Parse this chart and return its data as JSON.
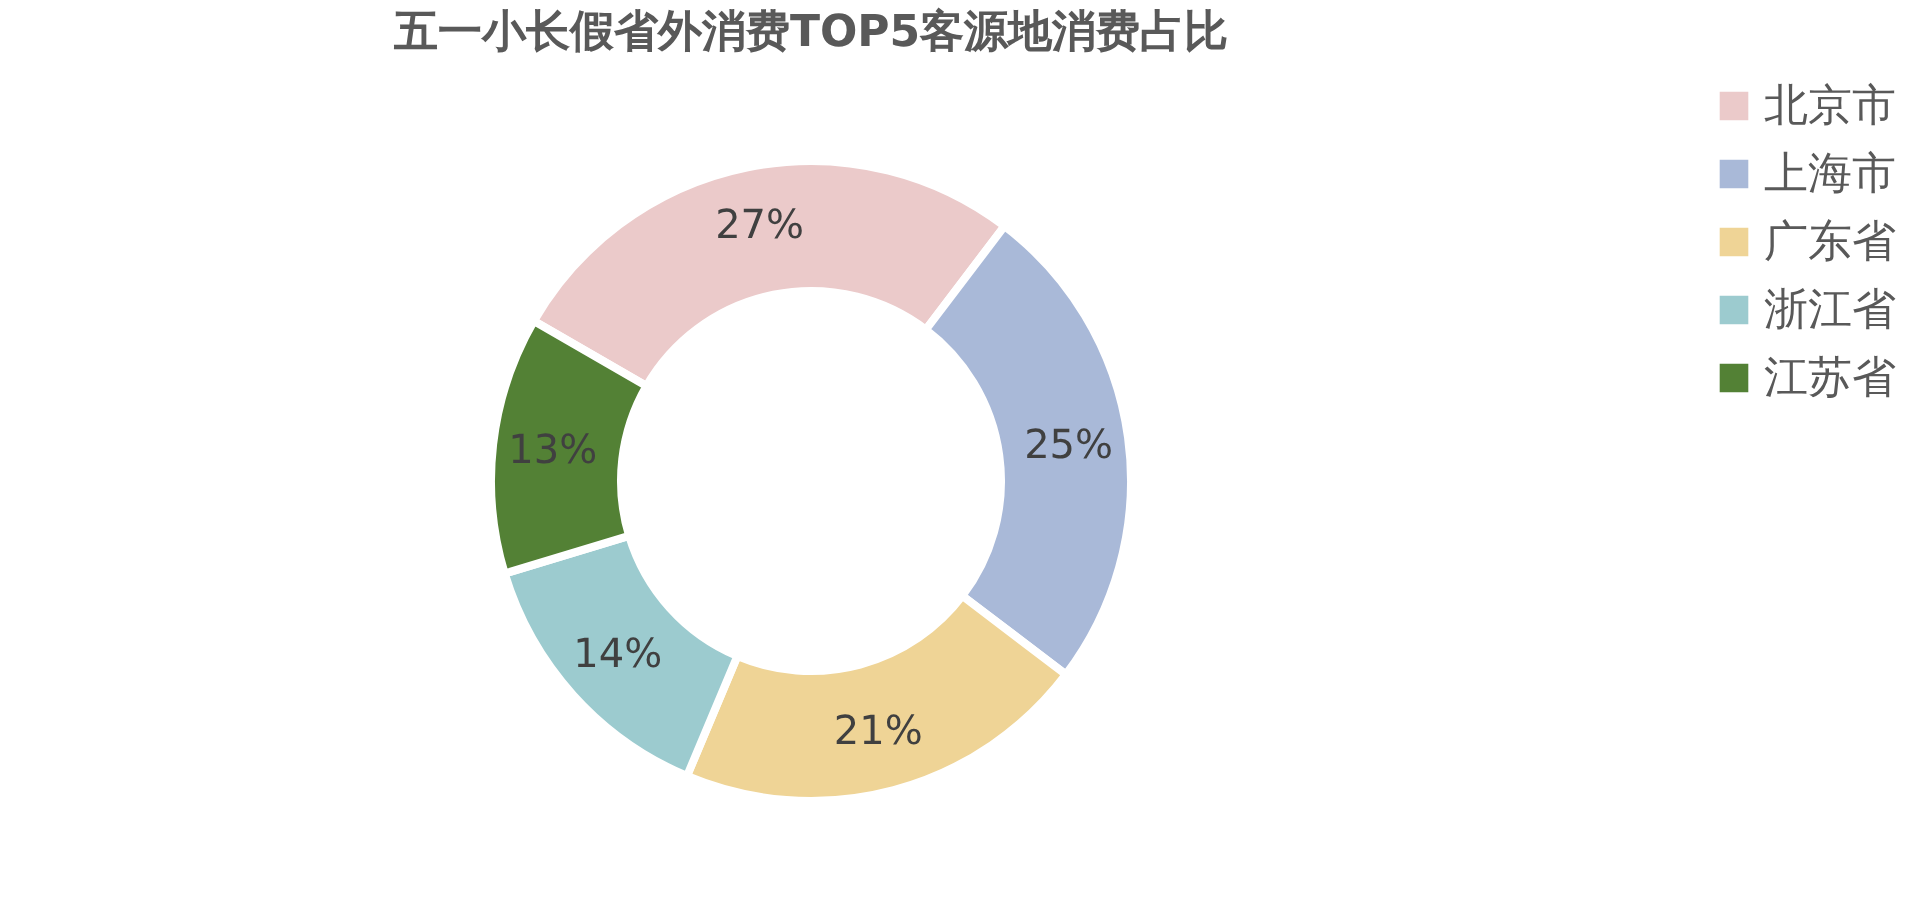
{
  "chart_data": {
    "type": "donut",
    "title": "五一小长假省外消费TOP5客源地消费占比",
    "categories": [
      "北京市",
      "上海市",
      "广东省",
      "浙江省",
      "江苏省"
    ],
    "values": [
      27,
      25,
      21,
      14,
      13
    ],
    "colors": [
      "#ebcaca",
      "#a9b9d8",
      "#efd496",
      "#9ccbcf",
      "#538135"
    ],
    "value_labels": [
      "27%",
      "25%",
      "21%",
      "14%",
      "13%"
    ],
    "legend": "right"
  }
}
